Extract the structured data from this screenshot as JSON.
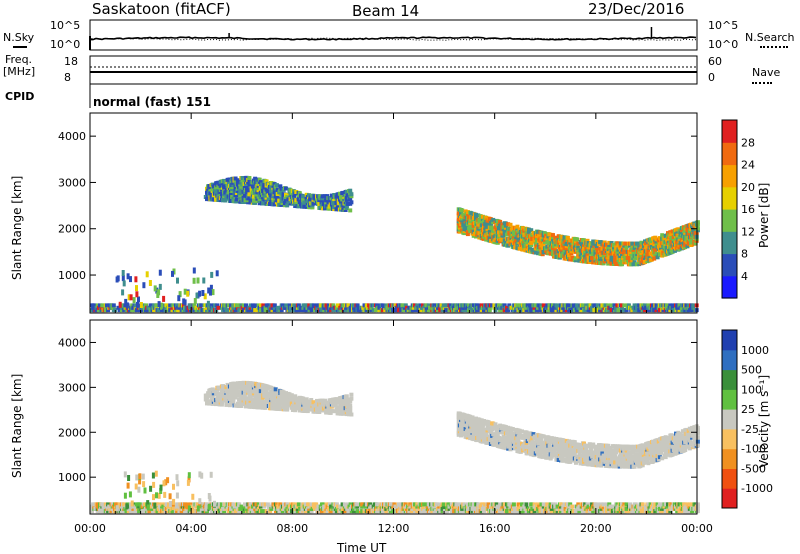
{
  "header": {
    "station": "Saskatoon (fitACF)",
    "beam": "Beam 14",
    "date": "23/Dec/2016"
  },
  "top_panel": {
    "left_label": "N.Sky",
    "right_label": "N.Search",
    "left_ticks": [
      "10^5",
      "10^0"
    ],
    "right_ticks": [
      "10^5",
      "10^0"
    ]
  },
  "freq_panel": {
    "left_label_line1": "Freq.",
    "left_label_line2": "[MHz]",
    "right_label": "Nave",
    "left_ticks": [
      "18",
      "8"
    ],
    "right_ticks": [
      "60",
      "0"
    ]
  },
  "cpid": {
    "label": "CPID",
    "value": "normal (fast) 151"
  },
  "chart_data": [
    {
      "type": "heatmap",
      "name": "power",
      "ylabel": "Slant Range [km]",
      "ylim": [
        180,
        4500
      ],
      "x_ticks": [
        "00:00",
        "04:00",
        "08:00",
        "12:00",
        "16:00",
        "20:00",
        "00:00"
      ],
      "x_tick_hours": [
        0,
        4,
        8,
        12,
        16,
        20,
        24
      ],
      "y_ticks": [
        1000,
        2000,
        3000,
        4000
      ],
      "colorbar": {
        "label": "Power [dB]",
        "ticks": [
          "4",
          "8",
          "12",
          "16",
          "20",
          "24",
          "28"
        ],
        "colors": [
          "#1a1aff",
          "#2a4db8",
          "#3f8e8e",
          "#6fbf4a",
          "#e6d000",
          "#f7a000",
          "#f06a10",
          "#e02020"
        ]
      },
      "features": [
        {
          "region": "near-range band",
          "hours": [
            0,
            24
          ],
          "range_km": [
            200,
            350
          ],
          "level": "mixed"
        },
        {
          "region": "mid-range patch",
          "hours": [
            4.5,
            10.3
          ],
          "range_km": [
            2350,
            3350
          ],
          "level": "low-mid"
        },
        {
          "region": "far-range arc",
          "hours": [
            14.5,
            24
          ],
          "range_km": [
            1200,
            2450
          ],
          "level": "high"
        }
      ]
    },
    {
      "type": "heatmap",
      "name": "velocity",
      "ylabel": "Slant Range [km]",
      "xlabel": "Time UT",
      "ylim": [
        180,
        4500
      ],
      "x_ticks": [
        "00:00",
        "04:00",
        "08:00",
        "12:00",
        "16:00",
        "20:00",
        "00:00"
      ],
      "x_tick_hours": [
        0,
        4,
        8,
        12,
        16,
        20,
        24
      ],
      "y_ticks": [
        1000,
        2000,
        3000,
        4000
      ],
      "colorbar": {
        "label": "Velocity [m s⁻¹]",
        "ticks": [
          "1000",
          "500",
          "100",
          "25",
          "-25",
          "-100",
          "-500",
          "-1000"
        ],
        "colors": [
          "#2040b0",
          "#2f6fc0",
          "#3a8f3a",
          "#60c040",
          "#c8c8c0",
          "#f8c060",
          "#f09020",
          "#f05010",
          "#e02020"
        ]
      },
      "features": [
        {
          "region": "near-range band",
          "hours": [
            0,
            24
          ],
          "range_km": [
            200,
            400
          ],
          "level": "mixed"
        },
        {
          "region": "mid-range patch",
          "hours": [
            4.5,
            10.3
          ],
          "range_km": [
            2350,
            3350
          ],
          "level": "ground scatter"
        },
        {
          "region": "far-range arc",
          "hours": [
            14.5,
            24
          ],
          "range_km": [
            1150,
            2500
          ],
          "level": "ground scatter"
        }
      ]
    }
  ]
}
